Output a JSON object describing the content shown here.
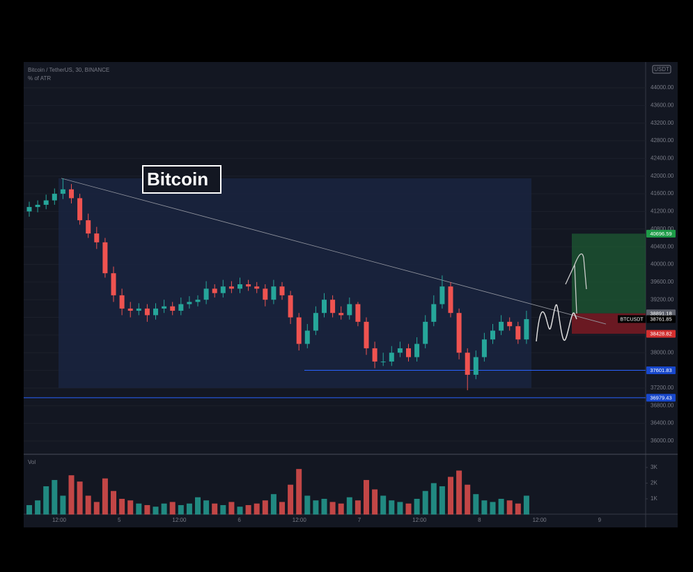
{
  "header": {
    "title": "Bitcoin / TetherUS, 30, BINANCE",
    "indicator": "% of ATR",
    "currency": "USDT",
    "label": "Bitcoin"
  },
  "chart_data": {
    "type": "candlestick",
    "open": [
      41200,
      41300,
      41350,
      41450,
      41600,
      41700,
      41500,
      41000,
      40700,
      40500,
      39800,
      39300,
      39000,
      38950,
      39000,
      38850,
      39000,
      39050,
      38950,
      39100,
      39150,
      39200,
      39450,
      39350,
      39500,
      39450,
      39550,
      39500,
      39450,
      39200,
      39500,
      39300,
      38800,
      38200,
      38500,
      38900,
      39200,
      38900,
      38850,
      39100,
      38700,
      38100,
      37800,
      37800,
      38000,
      38100,
      37900,
      38200,
      38700,
      39100,
      39500,
      38900,
      38000,
      37500,
      37900,
      38300,
      38500,
      38700,
      38600,
      38300
    ],
    "high": [
      41420,
      41450,
      41580,
      41720,
      41950,
      41820,
      41600,
      41150,
      40850,
      40600,
      39950,
      39450,
      39150,
      39120,
      39100,
      39120,
      39200,
      39150,
      39250,
      39280,
      39300,
      39620,
      39550,
      39650,
      39620,
      39700,
      39650,
      39600,
      39550,
      39650,
      39600,
      39400,
      38900,
      38650,
      39050,
      39350,
      39300,
      39050,
      39250,
      39150,
      38800,
      38250,
      38000,
      38150,
      38250,
      38200,
      38350,
      38850,
      39300,
      39750,
      39600,
      39000,
      38100,
      38050,
      38450,
      38650,
      38850,
      38800,
      38700,
      38950
    ],
    "low": [
      41080,
      41180,
      41250,
      41350,
      41480,
      41380,
      40900,
      40600,
      40350,
      39700,
      39150,
      38850,
      38800,
      38850,
      38700,
      38750,
      38900,
      38850,
      38850,
      39000,
      39050,
      39100,
      39250,
      39250,
      39350,
      39350,
      39400,
      39350,
      39050,
      39100,
      39200,
      38650,
      38050,
      38100,
      38400,
      38800,
      38800,
      38750,
      38750,
      38600,
      37950,
      37650,
      37700,
      37700,
      37900,
      37800,
      37800,
      38100,
      38600,
      39000,
      38800,
      37850,
      37150,
      37400,
      37800,
      38200,
      38400,
      38500,
      38200,
      38200
    ],
    "close": [
      41300,
      41350,
      41450,
      41600,
      41700,
      41500,
      41000,
      40700,
      40500,
      39800,
      39300,
      39000,
      38950,
      39000,
      38850,
      39000,
      39050,
      38950,
      39100,
      39150,
      39200,
      39450,
      39350,
      39500,
      39450,
      39550,
      39500,
      39450,
      39200,
      39500,
      39300,
      38800,
      38200,
      38500,
      38900,
      39200,
      38900,
      38850,
      39100,
      38700,
      38100,
      37800,
      37800,
      38000,
      38100,
      37900,
      38200,
      38700,
      39100,
      39500,
      38900,
      38000,
      37500,
      37900,
      38300,
      38500,
      38700,
      38600,
      38300,
      38760
    ],
    "volume": [
      600,
      900,
      1800,
      2200,
      1200,
      2500,
      2100,
      1200,
      800,
      2300,
      1500,
      1000,
      900,
      700,
      600,
      500,
      700,
      800,
      600,
      700,
      1100,
      900,
      700,
      600,
      800,
      500,
      600,
      700,
      900,
      1300,
      800,
      1900,
      2900,
      1200,
      900,
      1000,
      800,
      700,
      1100,
      900,
      2200,
      1600,
      1200,
      900,
      800,
      700,
      1000,
      1500,
      2000,
      1800,
      2400,
      2800,
      1900,
      1300,
      900,
      800,
      1000,
      900,
      700,
      1200
    ],
    "up_color": "#26a69a",
    "down_color": "#ef5350",
    "ylim": [
      35700,
      44584
    ],
    "yticks": [
      {
        "value": 36000,
        "label": "36000.00"
      },
      {
        "value": 36400,
        "label": "36400.00"
      },
      {
        "value": 36800,
        "label": "36800.00"
      },
      {
        "value": 37200,
        "label": "37200.00"
      },
      {
        "value": 37600,
        "label": "37600.00"
      },
      {
        "value": 38000,
        "label": "38000.00"
      },
      {
        "value": 38400,
        "label": "38400.00"
      },
      {
        "value": 38800,
        "label": "38800.00"
      },
      {
        "value": 39200,
        "label": "39200.00"
      },
      {
        "value": 39600,
        "label": "39600.00"
      },
      {
        "value": 40000,
        "label": "40000.00"
      },
      {
        "value": 40400,
        "label": "40400.00"
      },
      {
        "value": 40800,
        "label": "40800.00"
      },
      {
        "value": 41200,
        "label": "41200.00"
      },
      {
        "value": 41600,
        "label": "41600.00"
      },
      {
        "value": 42000,
        "label": "42000.00"
      },
      {
        "value": 42400,
        "label": "42400.00"
      },
      {
        "value": 42800,
        "label": "42800.00"
      },
      {
        "value": 43200,
        "label": "43200.00"
      },
      {
        "value": 43600,
        "label": "43600.00"
      },
      {
        "value": 44000,
        "label": "44000.00"
      }
    ],
    "vol_label": "Vol",
    "vol_ylim": [
      0,
      3840
    ],
    "vol_yticks": [
      {
        "value": 1000,
        "label": "1K"
      },
      {
        "value": 2000,
        "label": "2K"
      },
      {
        "value": 3000,
        "label": "3K"
      }
    ],
    "time_labels": [
      "12:00",
      "5",
      "12:00",
      "6",
      "12:00",
      "7",
      "12:00",
      "8",
      "12:00",
      "9"
    ],
    "markers": [
      {
        "price": 40696.59,
        "color": "#1e9c48"
      },
      {
        "price": 38891.18,
        "color": "#5d606b"
      },
      {
        "price": 38761.85,
        "color": "#000000",
        "name": "BTCUSDT"
      },
      {
        "price": 38428.82,
        "color": "#d32f2f"
      },
      {
        "price": 37601.83,
        "color": "#1848cc"
      },
      {
        "price": 36979.43,
        "color": "#1848cc"
      }
    ],
    "range_box": {
      "high": 41950,
      "low": 37200
    },
    "trendline": {
      "start": 41950,
      "end": 38650
    }
  }
}
